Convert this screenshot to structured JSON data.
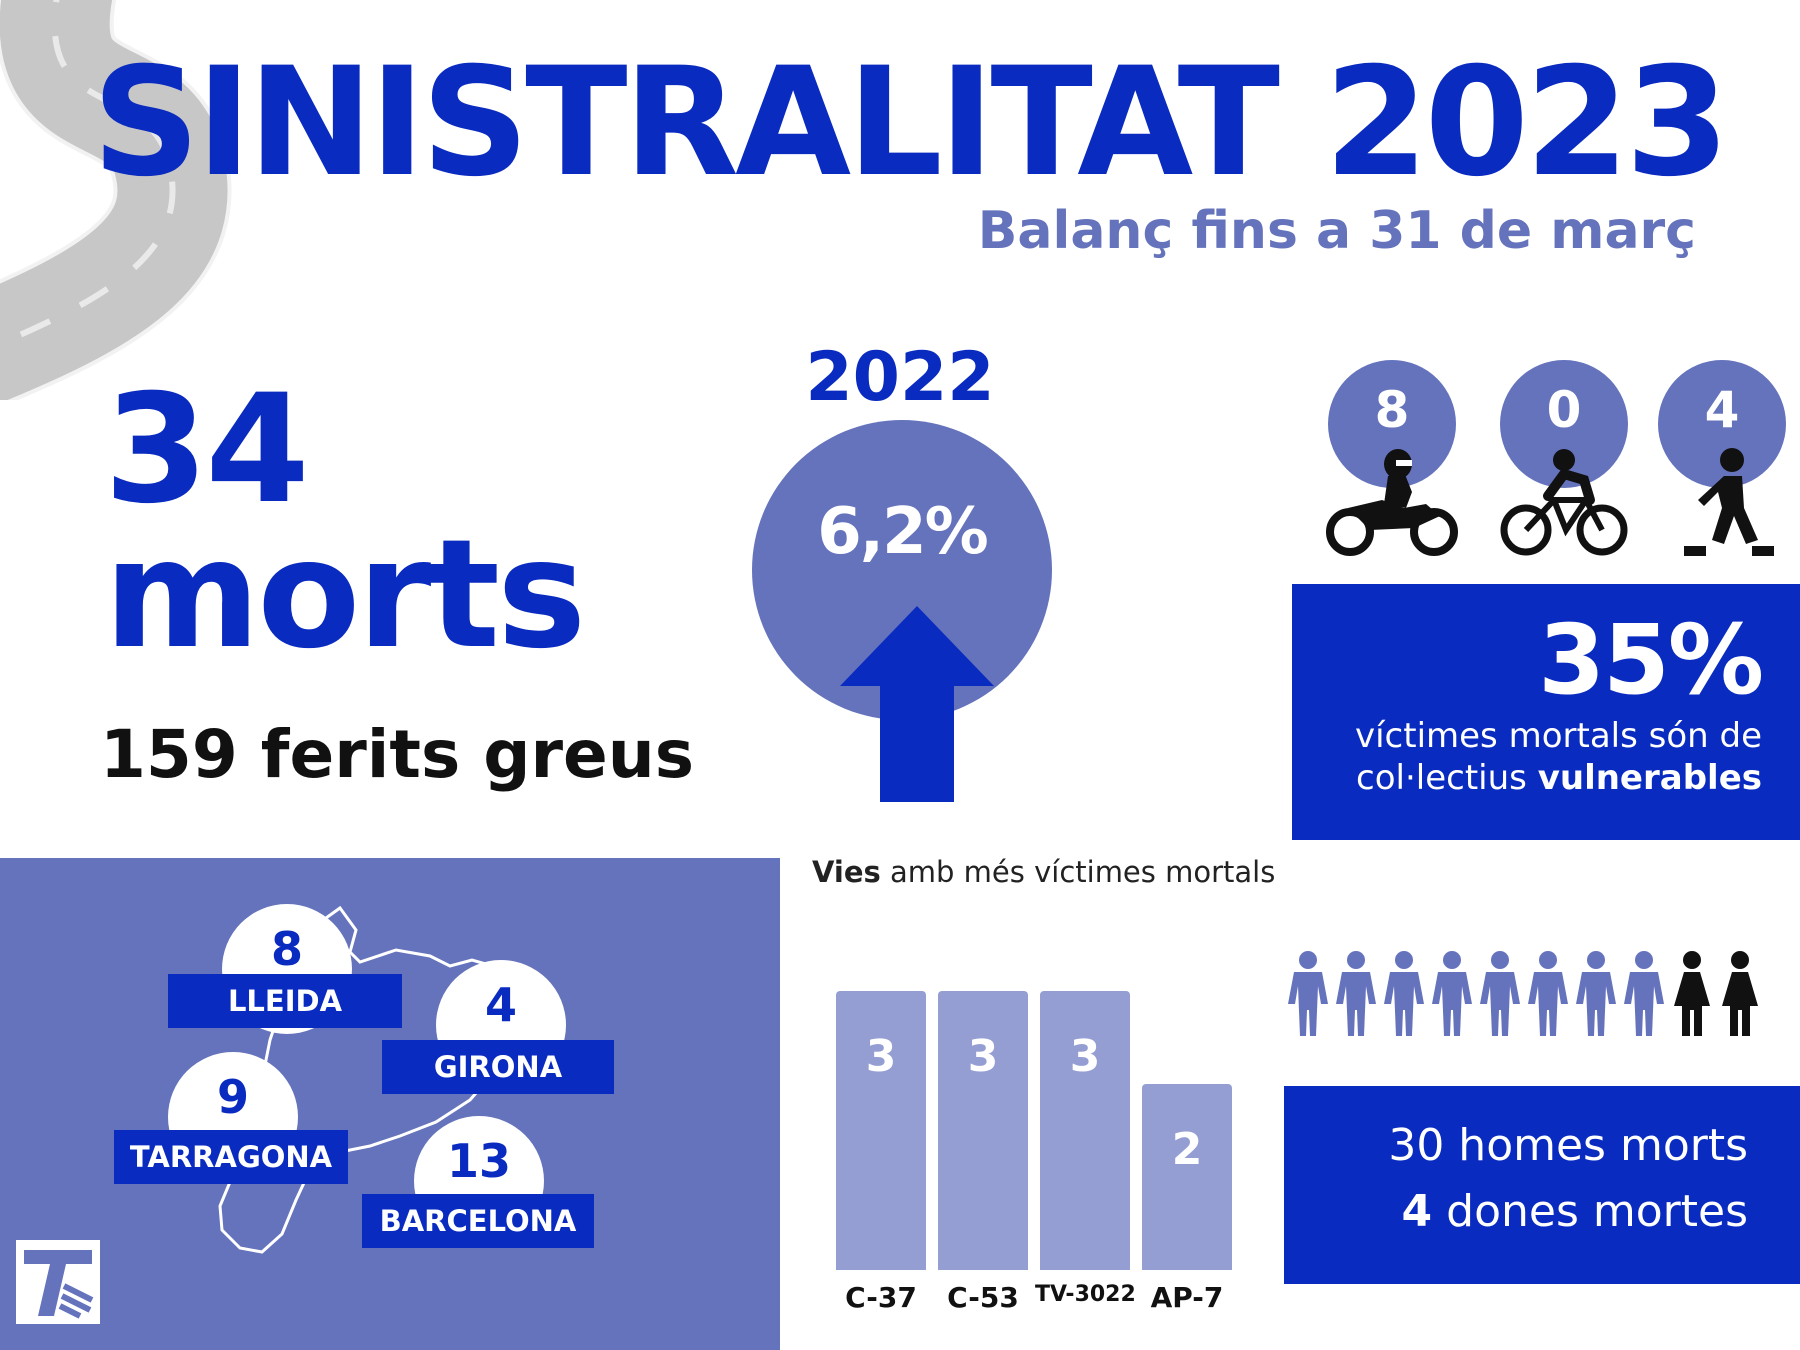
{
  "header": {
    "title": "SINISTRALITAT 2023",
    "subtitle": "Balanç fins a 31 de març"
  },
  "summary": {
    "deaths_number": "34",
    "deaths_word": "morts",
    "injured": "159 ferits greus"
  },
  "comparison": {
    "year": "2022",
    "change": "6,2%",
    "direction": "up",
    "icon": "arrow-up-icon"
  },
  "vulnerable": {
    "groups": [
      {
        "count": "8",
        "icon": "motorcycle-icon"
      },
      {
        "count": "0",
        "icon": "bicycle-icon"
      },
      {
        "count": "4",
        "icon": "pedestrian-icon"
      }
    ],
    "percent": "35%",
    "line1": "víctimes mortals són de",
    "line2_prefix": "col·lectius ",
    "line2_bold": "vulnerables"
  },
  "provinces": [
    {
      "name": "LLEIDA",
      "count": "8"
    },
    {
      "name": "GIRONA",
      "count": "4"
    },
    {
      "name": "TARRAGONA",
      "count": "9"
    },
    {
      "name": "BARCELONA",
      "count": "13"
    }
  ],
  "roads": {
    "title_bold": "Vies",
    "title_rest": " amb més víctimes mortals"
  },
  "chart_data": {
    "type": "bar",
    "categories": [
      "C-37",
      "C-53",
      "TV-3022",
      "AP-7"
    ],
    "values": [
      3,
      3,
      3,
      2
    ],
    "title": "Vies amb més víctimes mortals",
    "ylim": [
      0,
      4.2
    ]
  },
  "gender": {
    "men_line": "30 homes morts",
    "women_bold": "4",
    "women_rest": " dones mortes",
    "men_icons": 8,
    "women_icons": 2
  },
  "colors": {
    "primary": "#0a2bc0",
    "secondary": "#6473bc",
    "bars": "#949ed3",
    "women_icons": "#111111"
  }
}
